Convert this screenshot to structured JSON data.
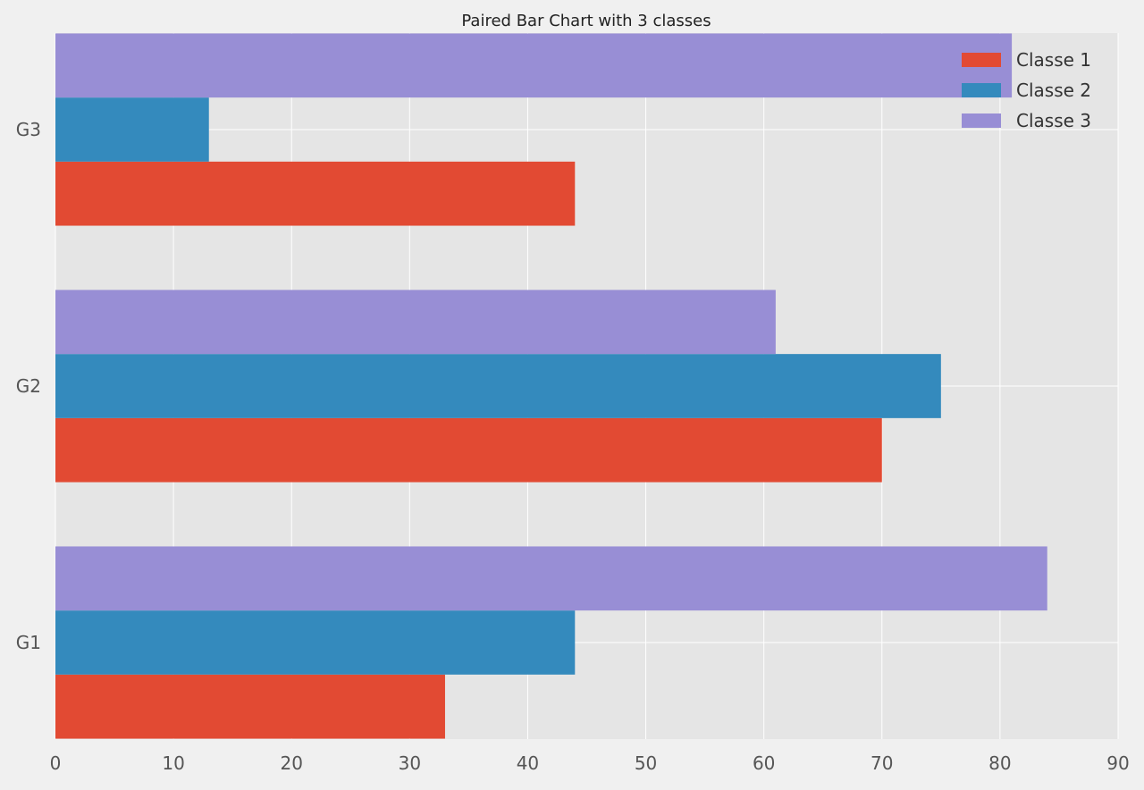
{
  "chart_data": {
    "type": "bar",
    "orientation": "horizontal",
    "title": "Paired Bar Chart with 3 classes",
    "xlabel": "",
    "ylabel": "",
    "categories": [
      "G1",
      "G2",
      "G3"
    ],
    "series": [
      {
        "name": "Classe 1",
        "values": [
          33,
          70,
          44
        ],
        "color": "#e24a33"
      },
      {
        "name": "Classe 2",
        "values": [
          44,
          75,
          13
        ],
        "color": "#348abd"
      },
      {
        "name": "Classe 3",
        "values": [
          84,
          61,
          81
        ],
        "color": "#988ed5"
      }
    ],
    "xlim": [
      0,
      90
    ],
    "xticks": [
      0,
      10,
      20,
      30,
      40,
      50,
      60,
      70,
      80,
      90
    ],
    "grid": true,
    "legend_position": "top-right"
  },
  "colors": {
    "figure_background": "#f0f0f0",
    "plot_background": "#e5e5e5",
    "grid": "#ffffff",
    "tick_text": "#555555",
    "title_text": "#222222",
    "legend_text": "#333333"
  }
}
